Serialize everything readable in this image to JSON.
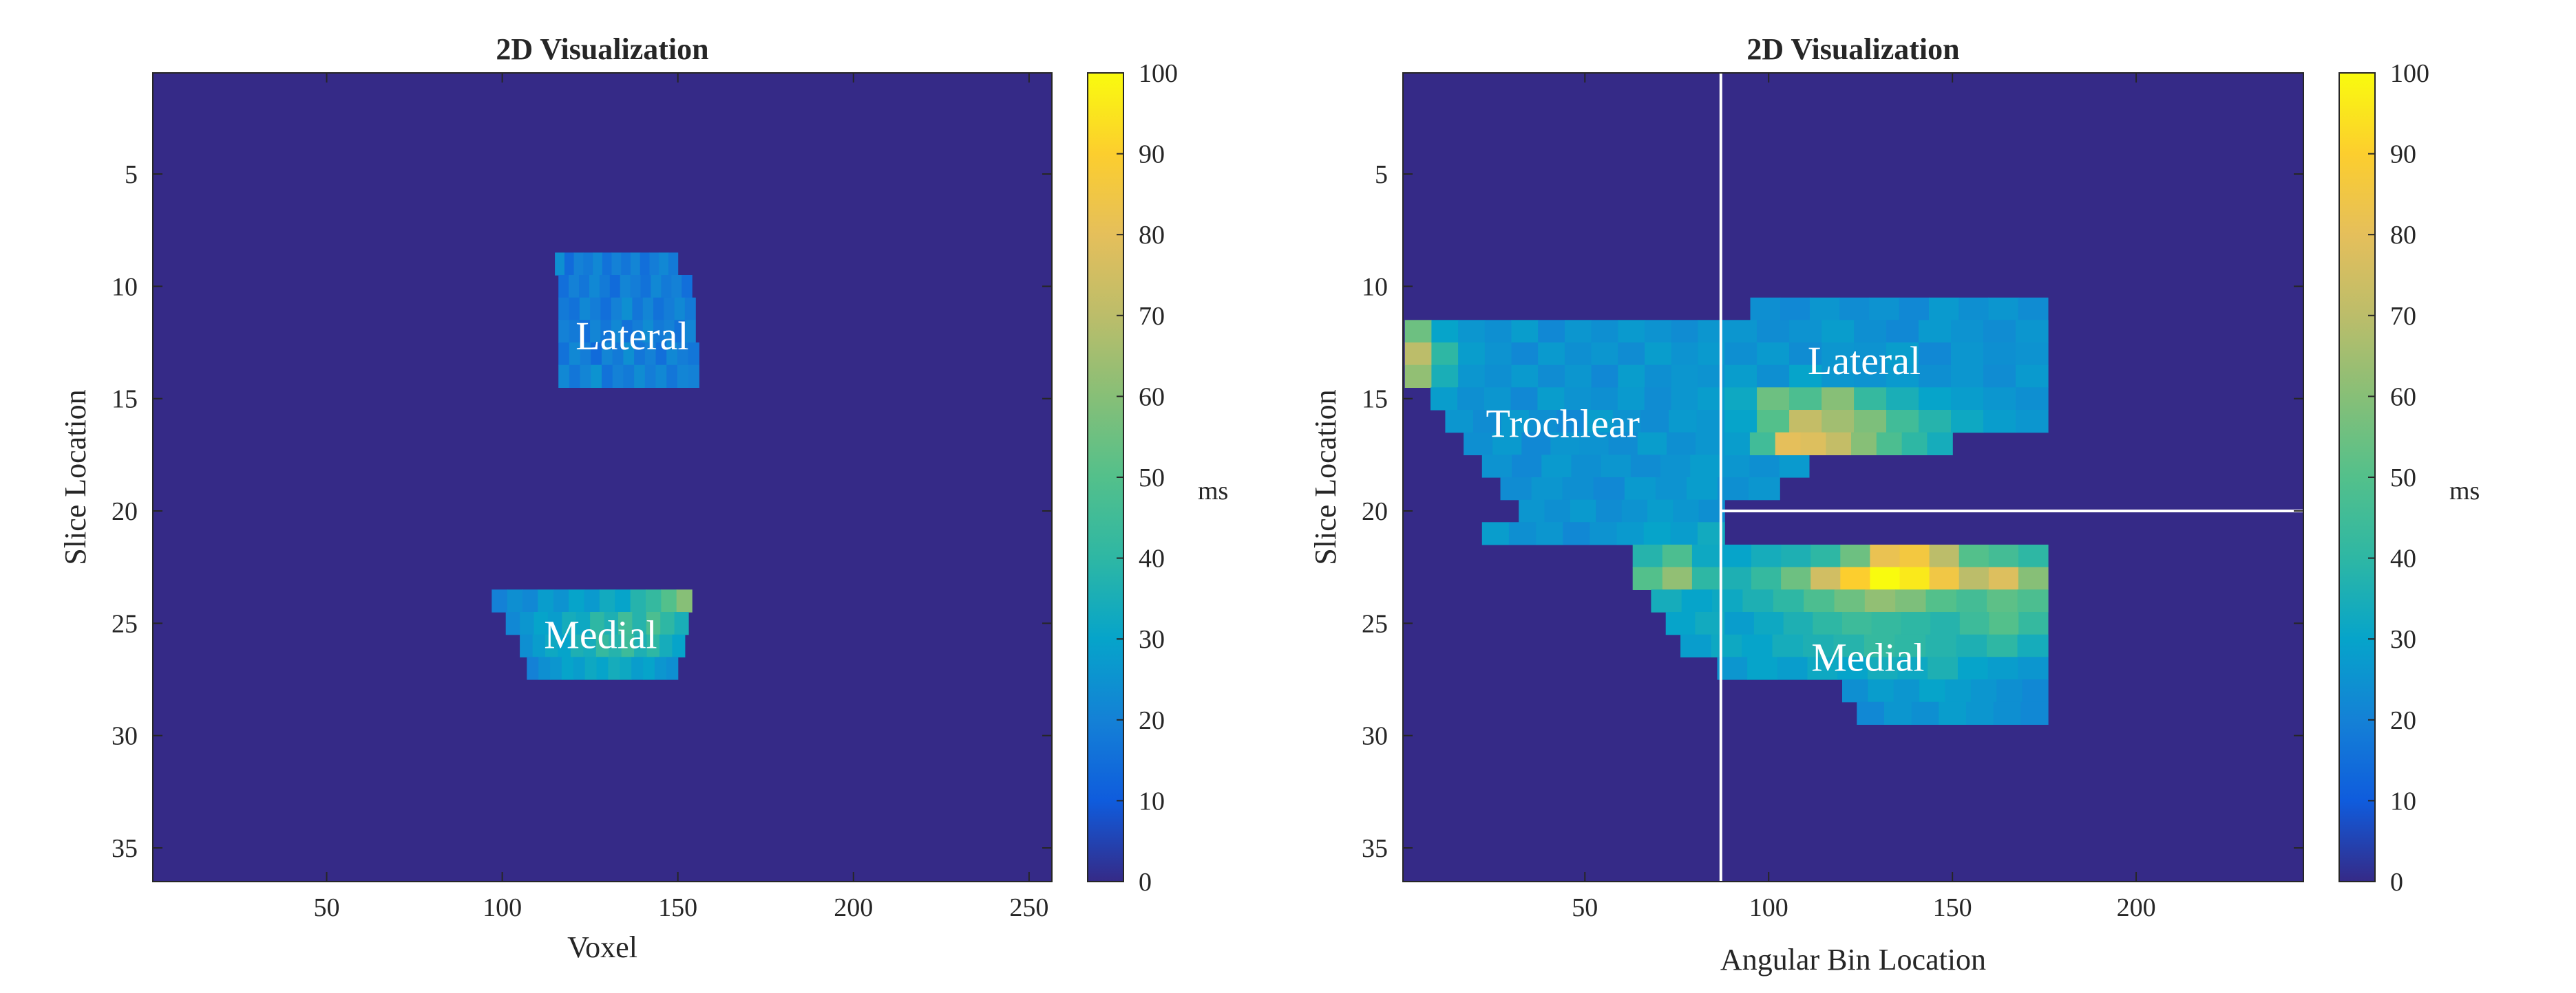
{
  "chart_data": [
    {
      "type": "heatmap",
      "title": "2D Visualization",
      "xlabel": "Voxel",
      "ylabel": "Slice Location",
      "colorbar_label": "ms",
      "xlim": [
        0.5,
        256.5
      ],
      "ylim": [
        0.5,
        36.5
      ],
      "y_reversed": true,
      "clim": [
        0,
        100
      ],
      "colormap": "parula",
      "background_value": 0,
      "xticks": [
        50,
        100,
        150,
        200,
        250
      ],
      "yticks": [
        5,
        10,
        15,
        20,
        25,
        30,
        35
      ],
      "cticks": [
        0,
        10,
        20,
        30,
        40,
        50,
        60,
        70,
        80,
        90,
        100
      ],
      "annotations": [
        {
          "text": "Lateral",
          "x": 137,
          "y": 12.2
        },
        {
          "text": "Medial",
          "x": 128,
          "y": 25.5
        }
      ],
      "regions": [
        {
          "name": "Lateral",
          "rows": [
            {
              "y": 9,
              "x0": 115,
              "x1": 150,
              "v": [
                24,
                14,
                20,
                18,
                22,
                16,
                20,
                17,
                21,
                15,
                19,
                22,
                18
              ]
            },
            {
              "y": 10,
              "x0": 116,
              "x1": 154,
              "v": [
                15,
                20,
                17,
                22,
                18,
                14,
                21,
                19,
                16,
                22,
                18,
                20,
                15
              ]
            },
            {
              "y": 11,
              "x0": 116,
              "x1": 155,
              "v": [
                18,
                16,
                22,
                19,
                15,
                20,
                24,
                17,
                21,
                16,
                19,
                22,
                18
              ]
            },
            {
              "y": 12,
              "x0": 116,
              "x1": 155,
              "v": [
                20,
                18,
                15,
                21,
                17,
                22,
                16,
                19,
                23,
                18,
                20,
                16,
                21
              ]
            },
            {
              "y": 13,
              "x0": 116,
              "x1": 156,
              "v": [
                16,
                22,
                19,
                14,
                21,
                18,
                24,
                17,
                20,
                15,
                22,
                19,
                17
              ]
            },
            {
              "y": 14,
              "x0": 116,
              "x1": 156,
              "v": [
                22,
                17,
                21,
                25,
                16,
                20,
                18,
                23,
                19,
                22,
                17,
                21,
                20
              ]
            }
          ]
        },
        {
          "name": "Medial",
          "rows": [
            {
              "y": 24,
              "x0": 97,
              "x1": 154,
              "v": [
                20,
                24,
                22,
                28,
                25,
                30,
                27,
                33,
                30,
                38,
                42,
                50,
                60
              ]
            },
            {
              "y": 25,
              "x0": 101,
              "x1": 153,
              "v": [
                22,
                26,
                30,
                28,
                34,
                32,
                40,
                36,
                45,
                38,
                48,
                40,
                35
              ]
            },
            {
              "y": 26,
              "x0": 105,
              "x1": 152,
              "v": [
                24,
                28,
                32,
                30,
                36,
                34,
                42,
                38,
                44,
                36,
                40,
                34,
                30
              ]
            },
            {
              "y": 27,
              "x0": 107,
              "x1": 150,
              "v": [
                20,
                24,
                26,
                30,
                28,
                32,
                30,
                34,
                32,
                28,
                30,
                26,
                24
              ]
            }
          ]
        }
      ]
    },
    {
      "type": "heatmap",
      "title": "2D Visualization",
      "xlabel": "Angular Bin Location",
      "ylabel": "Slice Location",
      "colorbar_label": "ms",
      "xlim": [
        0.5,
        245.5
      ],
      "ylim": [
        0.5,
        36.5
      ],
      "y_reversed": true,
      "clim": [
        0,
        100
      ],
      "colormap": "parula",
      "background_value": 0,
      "xticks": [
        50,
        100,
        150,
        200
      ],
      "yticks": [
        5,
        10,
        15,
        20,
        25,
        30,
        35
      ],
      "cticks": [
        0,
        10,
        20,
        30,
        40,
        50,
        60,
        70,
        80,
        90,
        100
      ],
      "crosshair": {
        "x": 87,
        "y": 20,
        "color": "#ffffff"
      },
      "annotations": [
        {
          "text": "Trochlear",
          "x": 44,
          "y": 16.1
        },
        {
          "text": "Lateral",
          "x": 126,
          "y": 13.3
        },
        {
          "text": "Medial",
          "x": 127,
          "y": 26.5
        }
      ],
      "regions": [
        {
          "name": "Trochlear",
          "rows": [
            {
              "y": 12,
              "x0": 1,
              "x1": 88,
              "v": [
                55,
                30,
                26,
                24,
                28,
                22,
                26,
                24,
                27,
                25,
                23,
                26
              ]
            },
            {
              "y": 13,
              "x0": 1,
              "x1": 88,
              "v": [
                70,
                40,
                28,
                25,
                22,
                27,
                24,
                26,
                23,
                28,
                25,
                27
              ]
            },
            {
              "y": 14,
              "x0": 1,
              "x1": 88,
              "v": [
                62,
                35,
                26,
                24,
                27,
                23,
                26,
                22,
                28,
                24,
                26,
                25
              ]
            },
            {
              "y": 15,
              "x0": 8,
              "x1": 88,
              "v": [
                28,
                24,
                26,
                22,
                28,
                25,
                24,
                27,
                23,
                26,
                28
              ]
            },
            {
              "y": 16,
              "x0": 12,
              "x1": 88,
              "v": [
                26,
                23,
                27,
                24,
                22,
                28,
                25,
                23,
                27,
                26
              ]
            },
            {
              "y": 17,
              "x0": 17,
              "x1": 88,
              "v": [
                24,
                27,
                22,
                26,
                25,
                23,
                28,
                24,
                26
              ]
            },
            {
              "y": 18,
              "x0": 22,
              "x1": 111,
              "v": [
                25,
                22,
                27,
                24,
                26,
                23,
                25,
                28,
                26,
                24,
                27
              ]
            },
            {
              "y": 19,
              "x0": 27,
              "x1": 103,
              "v": [
                23,
                26,
                24,
                22,
                27,
                25,
                28,
                24,
                26
              ]
            },
            {
              "y": 20,
              "x0": 32,
              "x1": 88,
              "v": [
                26,
                24,
                27,
                23,
                25,
                28,
                26,
                24
              ]
            },
            {
              "y": 21,
              "x0": 22,
              "x1": 88,
              "v": [
                28,
                24,
                26,
                22,
                25,
                27,
                30,
                28,
                33
              ]
            }
          ]
        },
        {
          "name": "Lateral",
          "rows": [
            {
              "y": 11,
              "x0": 95,
              "x1": 176,
              "v": [
                24,
                22,
                26,
                23,
                25,
                22,
                27,
                24,
                26,
                23
              ]
            },
            {
              "y": 12,
              "x0": 88,
              "x1": 176,
              "v": [
                26,
                23,
                25,
                28,
                24,
                22,
                27,
                25,
                23,
                26
              ]
            },
            {
              "y": 13,
              "x0": 88,
              "x1": 176,
              "v": [
                24,
                27,
                23,
                26,
                25,
                28,
                22,
                26,
                24,
                25
              ]
            },
            {
              "y": 14,
              "x0": 88,
              "x1": 176,
              "v": [
                28,
                24,
                30,
                26,
                25,
                27,
                24,
                26,
                23,
                27
              ]
            },
            {
              "y": 15,
              "x0": 88,
              "x1": 176,
              "v": [
                32,
                55,
                48,
                60,
                42,
                35,
                30,
                28,
                26,
                24
              ]
            },
            {
              "y": 16,
              "x0": 88,
              "x1": 176,
              "v": [
                30,
                50,
                72,
                65,
                58,
                45,
                38,
                32,
                28,
                26
              ]
            },
            {
              "y": 17,
              "x0": 88,
              "x1": 150,
              "v": [
                28,
                45,
                80,
                78,
                72,
                60,
                48,
                40,
                34
              ]
            }
          ]
        },
        {
          "name": "Medial",
          "rows": [
            {
              "y": 22,
              "x0": 63,
              "x1": 176,
              "v": [
                38,
                48,
                32,
                30,
                34,
                36,
                40,
                55,
                82,
                86,
                70,
                50,
                46,
                40
              ]
            },
            {
              "y": 23,
              "x0": 63,
              "x1": 176,
              "v": [
                50,
                62,
                40,
                36,
                42,
                55,
                75,
                90,
                100,
                96,
                85,
                70,
                78,
                60
              ]
            },
            {
              "y": 24,
              "x0": 68,
              "x1": 176,
              "v": [
                34,
                30,
                32,
                36,
                40,
                48,
                55,
                62,
                58,
                50,
                46,
                52,
                48
              ]
            },
            {
              "y": 25,
              "x0": 72,
              "x1": 176,
              "v": [
                30,
                33,
                28,
                32,
                36,
                40,
                44,
                42,
                40,
                38,
                44,
                50,
                42
              ]
            },
            {
              "y": 26,
              "x0": 76,
              "x1": 176,
              "v": [
                28,
                32,
                30,
                34,
                36,
                38,
                42,
                40,
                38,
                36,
                40,
                34
              ]
            },
            {
              "y": 27,
              "x0": 86,
              "x1": 176,
              "v": [
                26,
                30,
                28,
                32,
                30,
                34,
                32,
                36,
                30,
                28,
                26
              ]
            },
            {
              "y": 28,
              "x0": 120,
              "x1": 176,
              "v": [
                24,
                28,
                26,
                30,
                28,
                26,
                24,
                22
              ]
            },
            {
              "y": 29,
              "x0": 124,
              "x1": 176,
              "v": [
                22,
                26,
                24,
                28,
                26,
                24,
                22
              ]
            }
          ]
        }
      ]
    }
  ]
}
